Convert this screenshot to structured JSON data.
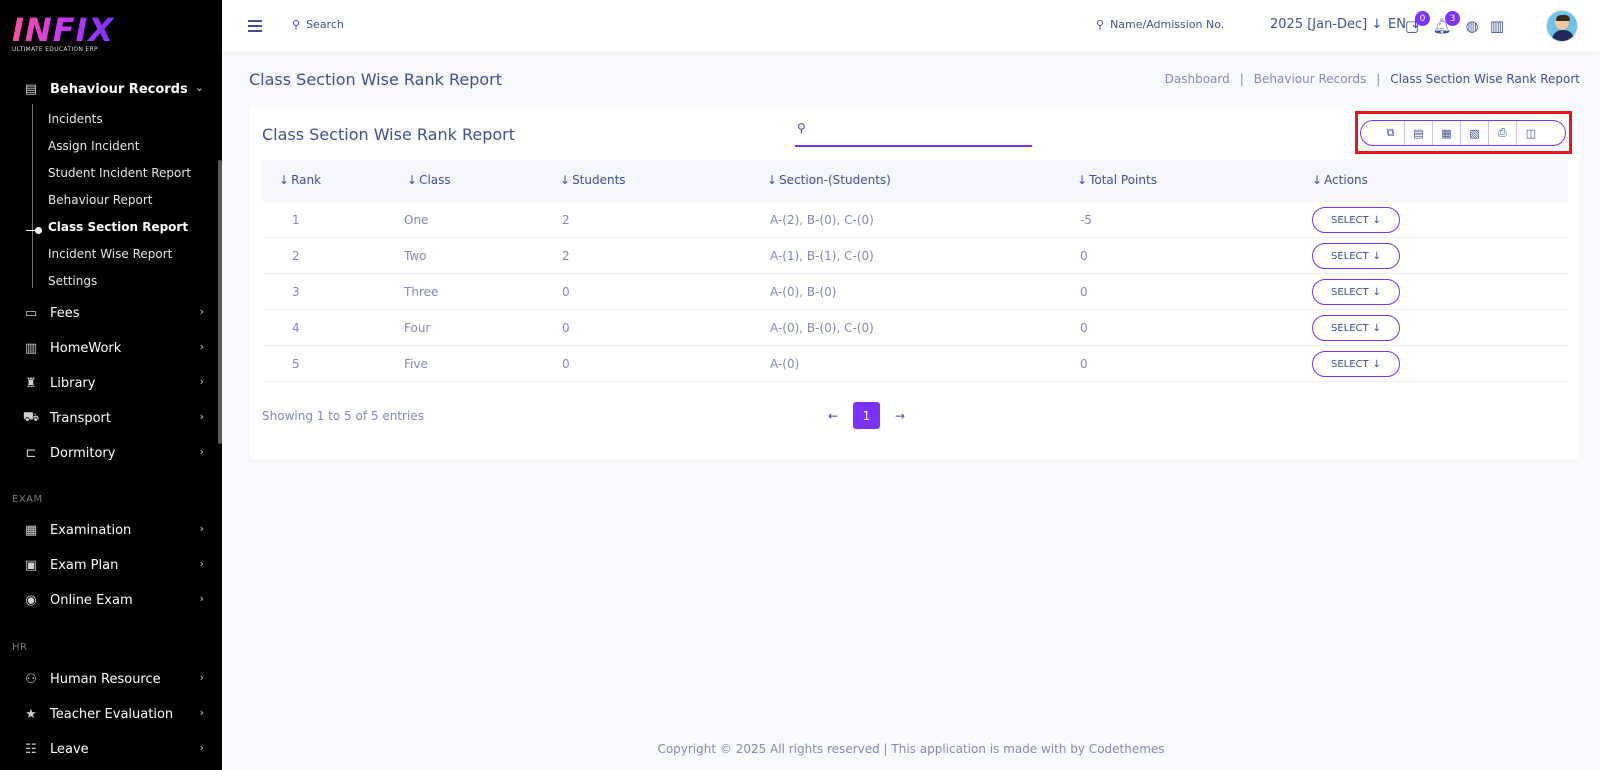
{
  "logo": {
    "brand": "INFIX",
    "tagline": "ULTIMATE EDUCATION ERP"
  },
  "sidebar": {
    "open_group": {
      "label": "Behaviour Records",
      "icon": "document-icon"
    },
    "sub_items": [
      {
        "label": "Incidents"
      },
      {
        "label": "Assign Incident"
      },
      {
        "label": "Student Incident Report"
      },
      {
        "label": "Behaviour Report"
      },
      {
        "label": "Class Section Report",
        "active": true
      },
      {
        "label": "Incident Wise Report"
      },
      {
        "label": "Settings"
      }
    ],
    "groups": [
      {
        "label": "Fees",
        "icon": "money-icon"
      },
      {
        "label": "HomeWork",
        "icon": "book-icon"
      },
      {
        "label": "Library",
        "icon": "library-icon"
      },
      {
        "label": "Transport",
        "icon": "bus-icon"
      },
      {
        "label": "Dormitory",
        "icon": "bed-icon"
      }
    ],
    "section_exam": "EXAM",
    "exam_groups": [
      {
        "label": "Examination",
        "icon": "map-icon"
      },
      {
        "label": "Exam Plan",
        "icon": "clipboard-icon"
      },
      {
        "label": "Online Exam",
        "icon": "globe-icon"
      }
    ],
    "section_hr": "HR",
    "hr_groups": [
      {
        "label": "Human Resource",
        "icon": "people-icon"
      },
      {
        "label": "Teacher Evaluation",
        "icon": "star-icon"
      },
      {
        "label": "Leave",
        "icon": "leave-icon"
      }
    ]
  },
  "header": {
    "search_label": "Search",
    "admission_search": "Name/Admission No.",
    "academic_year": "2025 [Jan-Dec]",
    "language": "EN",
    "messages_count": "0",
    "notifications_count": "3"
  },
  "page": {
    "title": "Class Section Wise Rank Report",
    "breadcrumb": [
      "Dashboard",
      "Behaviour Records",
      "Class Section Wise Rank Report"
    ]
  },
  "card": {
    "title": "Class Section Wise Rank Report",
    "search_placeholder": ""
  },
  "table": {
    "columns": [
      "Rank",
      "Class",
      "Students",
      "Section-(Students)",
      "Total Points",
      "Actions"
    ],
    "rows": [
      {
        "rank": "1",
        "class": "One",
        "students": "2",
        "sections": "A-(2), B-(0), C-(0)",
        "points": "-5",
        "action": "SELECT"
      },
      {
        "rank": "2",
        "class": "Two",
        "students": "2",
        "sections": "A-(1), B-(1), C-(0)",
        "points": "0",
        "action": "SELECT"
      },
      {
        "rank": "3",
        "class": "Three",
        "students": "0",
        "sections": "A-(0), B-(0)",
        "points": "0",
        "action": "SELECT"
      },
      {
        "rank": "4",
        "class": "Four",
        "students": "0",
        "sections": "A-(0), B-(0), C-(0)",
        "points": "0",
        "action": "SELECT"
      },
      {
        "rank": "5",
        "class": "Five",
        "students": "0",
        "sections": "A-(0)",
        "points": "0",
        "action": "SELECT"
      }
    ],
    "showing": "Showing 1 to 5 of 5 entries",
    "current_page": "1"
  },
  "footer": "Copyright © 2025 All rights reserved | This application is made with by Codethemes",
  "colors": {
    "accent": "#7c32ff",
    "primary_text": "#415094",
    "muted_text": "#828bb2",
    "highlight": "#e8161b"
  }
}
